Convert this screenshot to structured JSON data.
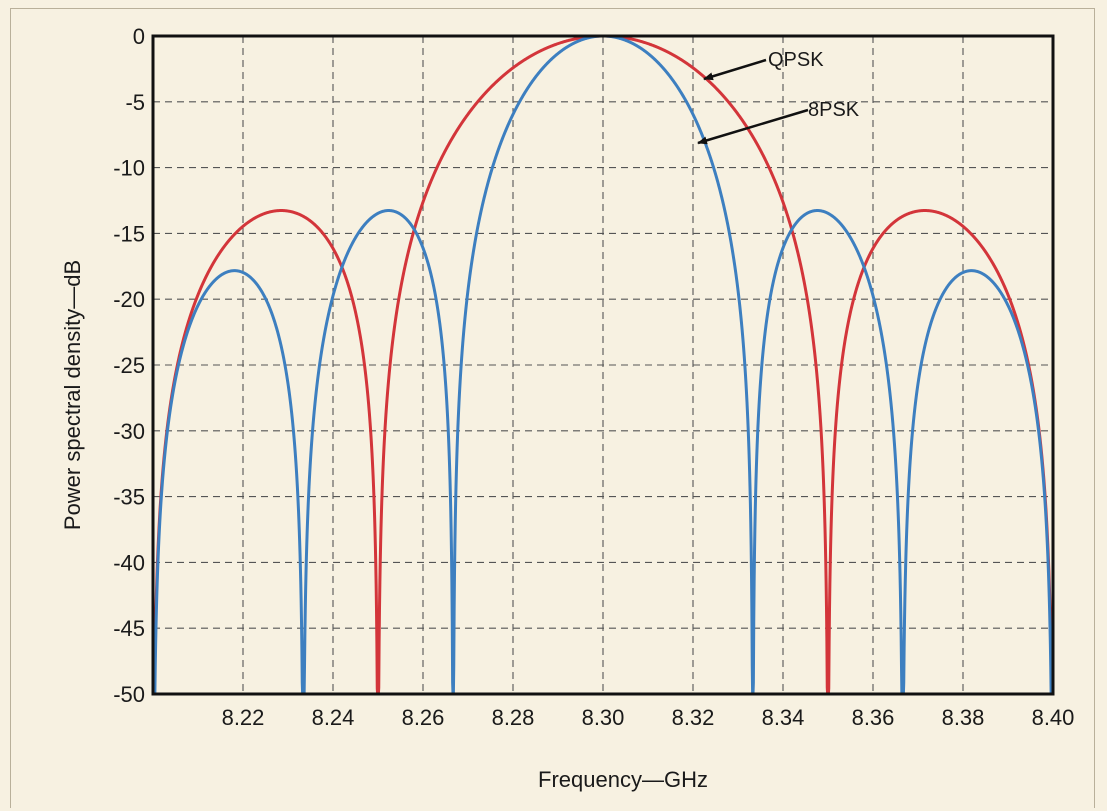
{
  "chart_data": {
    "type": "line",
    "title": "",
    "xlabel": "Frequency—GHz",
    "ylabel": "Power spectral density—dB",
    "xlim": [
      8.2,
      8.4
    ],
    "ylim": [
      -50,
      0
    ],
    "x_ticks": [
      "8.22",
      "8.24",
      "8.26",
      "8.28",
      "8.30",
      "8.32",
      "8.34",
      "8.36",
      "8.38",
      "8.40"
    ],
    "y_ticks": [
      "0",
      "-5",
      "-10",
      "-15",
      "-20",
      "-25",
      "-30",
      "-35",
      "-40",
      "-45",
      "-50"
    ],
    "grid": true,
    "center_frequency": 8.3,
    "series": [
      {
        "name": "QPSK",
        "color": "#d3353a",
        "first_null_offset": 0.05,
        "peak_db": 0,
        "sidelobe_peak_db": -13.6,
        "annotation": "QPSK"
      },
      {
        "name": "8PSK",
        "color": "#3d7fc0",
        "first_null_offset": 0.0333,
        "peak_db": 0,
        "sidelobe_peak_db": -13.2,
        "second_sidelobe_peak_db": -17.9,
        "annotation": "8PSK"
      }
    ]
  }
}
